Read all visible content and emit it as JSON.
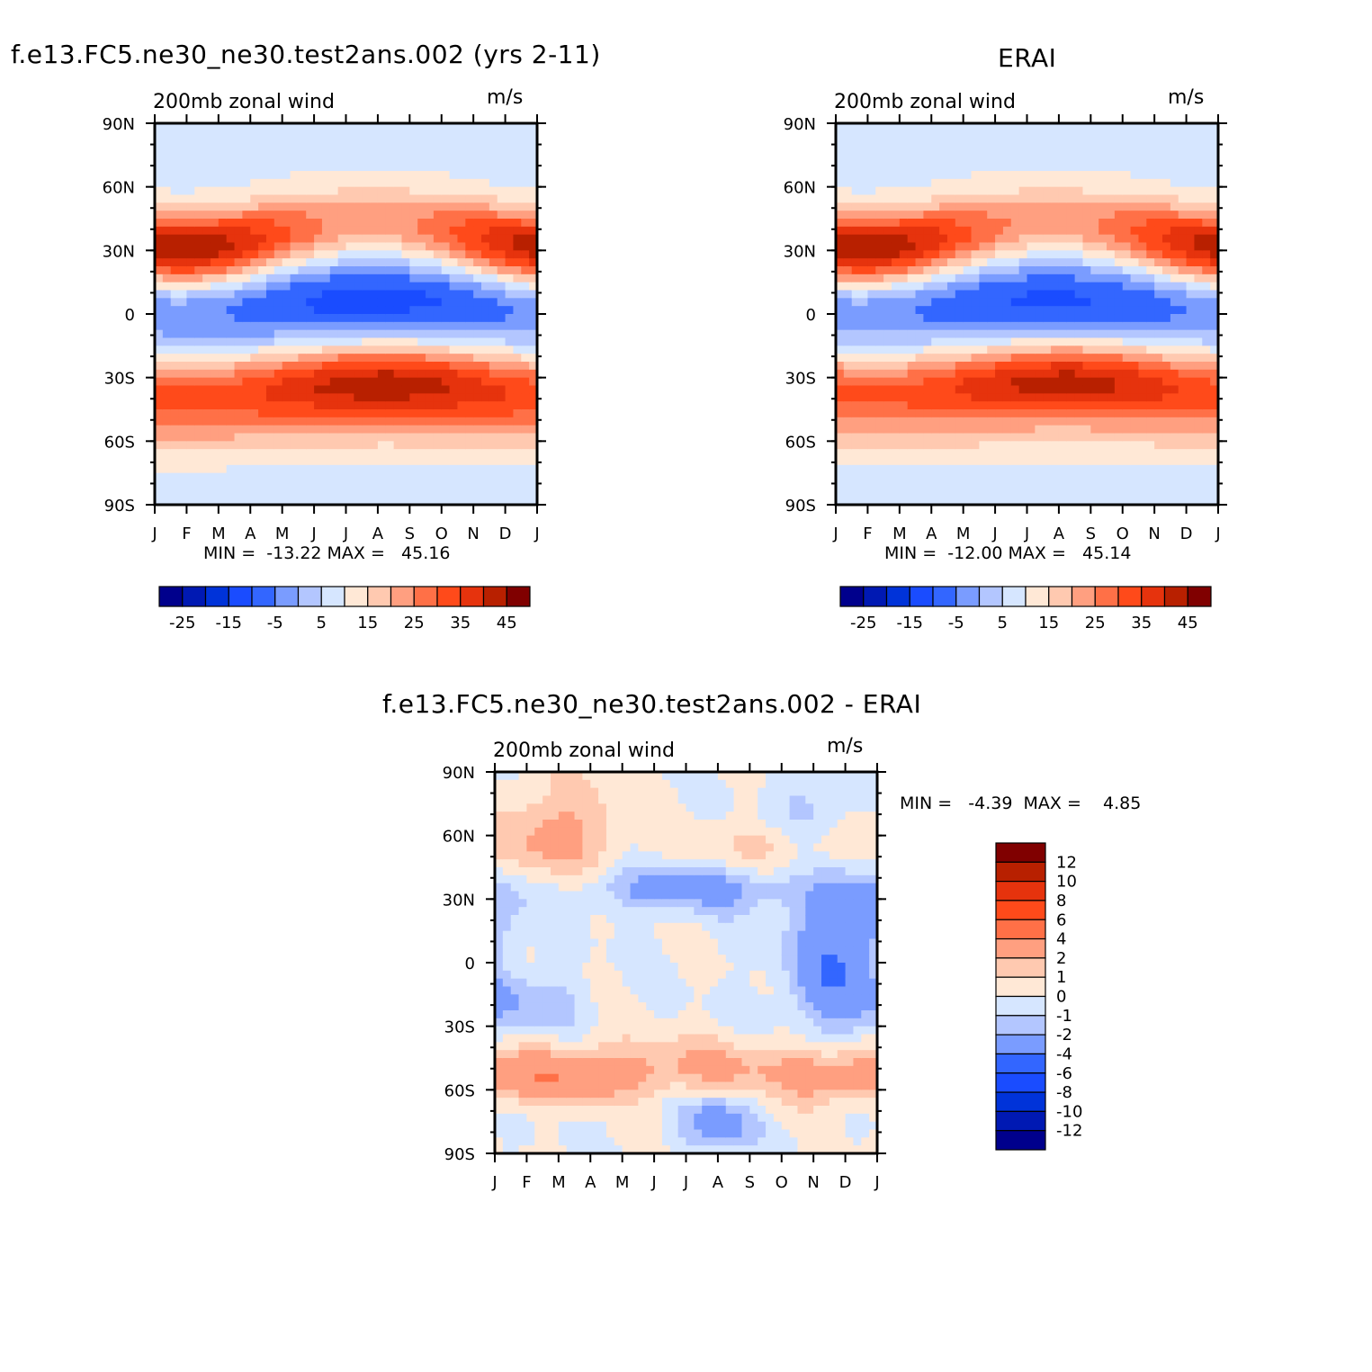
{
  "panels": [
    {
      "id": "model",
      "title": "f.e13.FC5.ne30_ne30.test2ans.002 (yrs 2-11)",
      "subtitle": "200mb zonal wind",
      "units": "m/s",
      "minmax": "MIN =  -13.22 MAX =   45.16"
    },
    {
      "id": "obs",
      "title": "ERAI",
      "subtitle": "200mb zonal wind",
      "units": "m/s",
      "minmax": "MIN =  -12.00 MAX =   45.14"
    },
    {
      "id": "diff",
      "title": "f.e13.FC5.ne30_ne30.test2ans.002 - ERAI",
      "subtitle": "200mb zonal wind",
      "units": "m/s",
      "minmax": "MIN =   -4.39  MAX =    4.85"
    }
  ],
  "colors": {
    "abs": [
      "#00008c",
      "#0019b3",
      "#0033d9",
      "#1a4cff",
      "#3366ff",
      "#7a9cff",
      "#b3c6ff",
      "#d6e6ff",
      "#ffe8d6",
      "#ffc9b0",
      "#ff9f80",
      "#ff7047",
      "#ff4a1a",
      "#e6330d",
      "#b82000",
      "#800000"
    ],
    "diff": [
      "#00008c",
      "#0019b3",
      "#0033d9",
      "#1a4cff",
      "#3366ff",
      "#7a9cff",
      "#b3c6ff",
      "#d6e6ff",
      "#ffe8d6",
      "#ffc9b0",
      "#ff9f80",
      "#ff7047",
      "#ff4a1a",
      "#e6330d",
      "#b82000",
      "#800000"
    ]
  },
  "chart_data": [
    {
      "type": "heatmap",
      "panel": "model",
      "x_ticks": [
        "J",
        "F",
        "M",
        "A",
        "M",
        "J",
        "J",
        "A",
        "S",
        "O",
        "N",
        "D",
        "J"
      ],
      "y_ticks": [
        "90N",
        "60N",
        "30N",
        "0",
        "30S",
        "60S",
        "90S"
      ],
      "ylim": [
        -90,
        90
      ],
      "colorbar_ticks": [
        "-25",
        "-15",
        "-5",
        "5",
        "15",
        "25",
        "35",
        "45"
      ],
      "features": [
        {
          "kind": "jet",
          "lat": 30,
          "peak_month": 0.8,
          "peak": 45.16,
          "amp": 24,
          "season": "winter"
        },
        {
          "kind": "jet",
          "lat": -33,
          "peak_month": 7.2,
          "peak": 43,
          "amp": 10,
          "season": "summer"
        },
        {
          "kind": "easterly",
          "lat": 5,
          "peak_month": 6.8,
          "min": -13.22
        }
      ]
    },
    {
      "type": "heatmap",
      "panel": "obs",
      "x_ticks": [
        "J",
        "F",
        "M",
        "A",
        "M",
        "J",
        "J",
        "A",
        "S",
        "O",
        "N",
        "D",
        "J"
      ],
      "y_ticks": [
        "90N",
        "60N",
        "30N",
        "0",
        "30S",
        "60S",
        "90S"
      ],
      "ylim": [
        -90,
        90
      ],
      "colorbar_ticks": [
        "-25",
        "-15",
        "-5",
        "5",
        "15",
        "25",
        "35",
        "45"
      ],
      "features": [
        {
          "kind": "jet",
          "lat": 30,
          "peak_month": 0.8,
          "peak": 45.14,
          "amp": 24,
          "season": "winter"
        },
        {
          "kind": "jet",
          "lat": -32,
          "peak_month": 7.2,
          "peak": 42,
          "amp": 10,
          "season": "summer"
        },
        {
          "kind": "easterly",
          "lat": 5,
          "peak_month": 6.8,
          "min": -12.0
        }
      ]
    },
    {
      "type": "heatmap",
      "panel": "diff",
      "x_ticks": [
        "J",
        "F",
        "M",
        "A",
        "M",
        "J",
        "J",
        "A",
        "S",
        "O",
        "N",
        "D",
        "J"
      ],
      "y_ticks": [
        "90N",
        "60N",
        "30N",
        "0",
        "30S",
        "60S",
        "90S"
      ],
      "ylim": [
        -90,
        90
      ],
      "colorbar_levels": [
        "12",
        "10",
        "8",
        "6",
        "4",
        "2",
        "1",
        "0",
        "-1",
        "-2",
        "-4",
        "-6",
        "-8",
        "-10",
        "-12"
      ],
      "features": [
        {
          "kind": "blob",
          "month": 2.0,
          "lat": 60,
          "value": 2.5,
          "w": 1.3,
          "h": 18
        },
        {
          "kind": "blob",
          "month": 6.0,
          "lat": 35,
          "value": -2.6,
          "w": 2.8,
          "h": 8
        },
        {
          "kind": "blob",
          "month": 10.0,
          "lat": 70,
          "value": -1.6,
          "w": 1.0,
          "h": 12
        },
        {
          "kind": "blob",
          "month": 10.6,
          "lat": -5,
          "value": -3.5,
          "w": 1.0,
          "h": 20
        },
        {
          "kind": "blob",
          "month": 11.4,
          "lat": 25,
          "value": -2.4,
          "w": 1.0,
          "h": 14
        },
        {
          "kind": "blob",
          "month": 6.0,
          "lat": -50,
          "value": 2.2,
          "w": 5.0,
          "h": 10
        },
        {
          "kind": "blob",
          "month": 7.0,
          "lat": -75,
          "value": -3.0,
          "w": 0.8,
          "h": 10
        },
        {
          "kind": "blob",
          "month": 11.0,
          "lat": -55,
          "value": 2.0,
          "w": 1.4,
          "h": 8
        },
        {
          "kind": "blob",
          "month": 2.2,
          "lat": -55,
          "value": 2.0,
          "w": 1.4,
          "h": 8
        },
        {
          "kind": "blob",
          "month": 1.0,
          "lat": -20,
          "value": -1.8,
          "w": 1.2,
          "h": 10
        },
        {
          "kind": "blob",
          "month": 9.0,
          "lat": 55,
          "value": 1.4,
          "w": 2.0,
          "h": 10
        }
      ]
    }
  ]
}
